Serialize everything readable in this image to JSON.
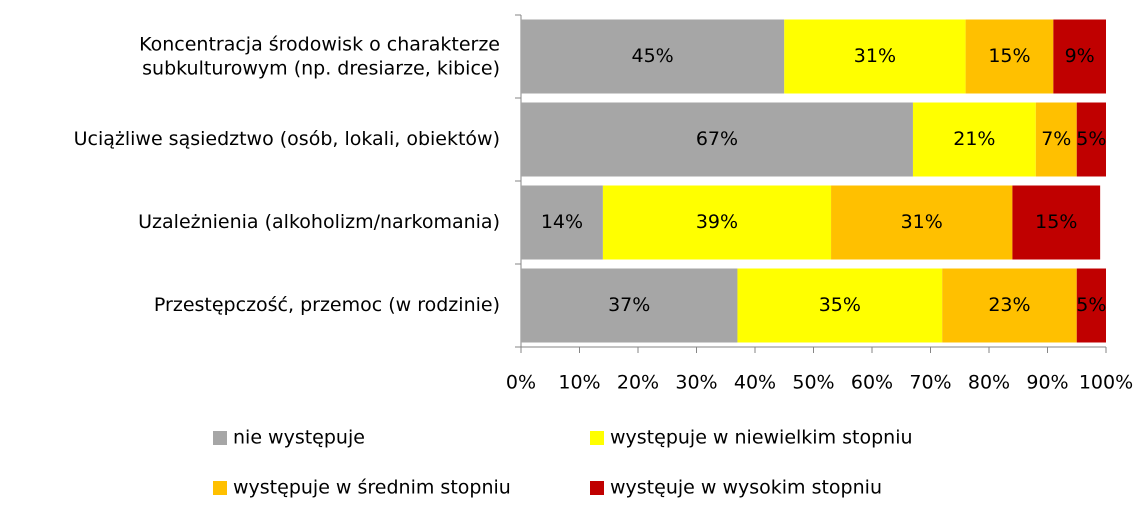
{
  "chart_data": {
    "type": "stacked_bar_horizontal",
    "categories": [
      "Koncentracja środowisk o charakterze subkulturowym (np. dresiarze, kibice)",
      "Uciążliwe sąsiedztwo (osób, lokali, obiektów)",
      "Uzależnienia (alkoholizm/narkomania)",
      "Przestępczość, przemoc (w rodzinie)"
    ],
    "series": [
      {
        "name": "nie występuje",
        "color": "#a6a6a6",
        "values": [
          45,
          67,
          14,
          37
        ],
        "value_labels": [
          "45%",
          "67%",
          "14%",
          "37%"
        ]
      },
      {
        "name": "występuje w niewielkim stopniu",
        "color": "#ffff00",
        "values": [
          31,
          21,
          39,
          35
        ],
        "value_labels": [
          "31%",
          "21%",
          "39%",
          "35%"
        ]
      },
      {
        "name": "występuje w średnim stopniu",
        "color": "#ffc000",
        "values": [
          15,
          7,
          31,
          23
        ],
        "value_labels": [
          "15%",
          "7%",
          "31%",
          "23%"
        ]
      },
      {
        "name": "wystęuje w wysokim stopniu",
        "color": "#c00000",
        "values": [
          9,
          5,
          15,
          5
        ],
        "value_labels": [
          "9%",
          "5%",
          "15%",
          "5%"
        ]
      }
    ],
    "xlim": [
      0,
      100
    ],
    "xticks": [
      {
        "value": 0,
        "label": "0%"
      },
      {
        "value": 10,
        "label": "10%"
      },
      {
        "value": 20,
        "label": "20%"
      },
      {
        "value": 30,
        "label": "30%"
      },
      {
        "value": 40,
        "label": "40%"
      },
      {
        "value": 50,
        "label": "50%"
      },
      {
        "value": 60,
        "label": "60%"
      },
      {
        "value": 70,
        "label": "70%"
      },
      {
        "value": 80,
        "label": "80%"
      },
      {
        "value": 90,
        "label": "90%"
      },
      {
        "value": 100,
        "label": "100%"
      }
    ],
    "legend": "bottom"
  }
}
